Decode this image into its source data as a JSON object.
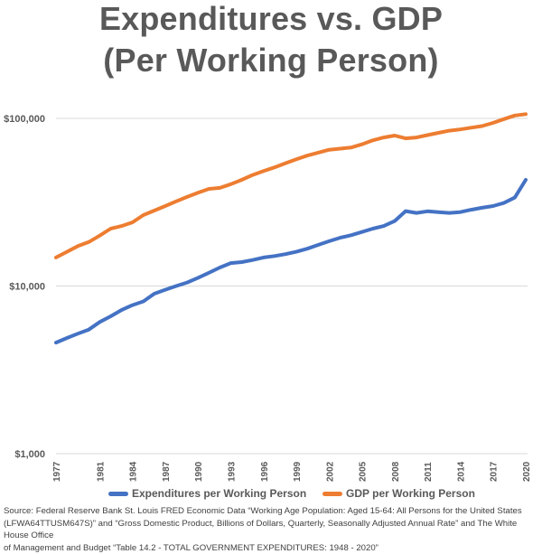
{
  "chart_data": {
    "type": "line",
    "title": "Expenditures vs. GDP",
    "subtitle": "(Per Working Person)",
    "xlabel": "",
    "ylabel": "",
    "yscale": "log",
    "ylim": [
      1000,
      100000
    ],
    "yticks": [
      {
        "value": 100000,
        "label": "$100,000"
      },
      {
        "value": 10000,
        "label": "$10,000"
      },
      {
        "value": 1000,
        "label": "$1,000"
      }
    ],
    "xlim": [
      1977,
      2020
    ],
    "xticks": [
      "1977",
      "1981",
      "1984",
      "1987",
      "1990",
      "1993",
      "1996",
      "1999",
      "2002",
      "2005",
      "2008",
      "2011",
      "2014",
      "2017",
      "2020"
    ],
    "grid": true,
    "legend_position": "bottom",
    "series": [
      {
        "name": "Expenditures per Working Person",
        "color": "#4472C4",
        "points": [
          [
            1977,
            4600
          ],
          [
            1978,
            4900
          ],
          [
            1979,
            5200
          ],
          [
            1980,
            5500
          ],
          [
            1981,
            6100
          ],
          [
            1982,
            6600
          ],
          [
            1983,
            7200
          ],
          [
            1984,
            7700
          ],
          [
            1985,
            8100
          ],
          [
            1986,
            9000
          ],
          [
            1987,
            9500
          ],
          [
            1988,
            10000
          ],
          [
            1989,
            10500
          ],
          [
            1990,
            11200
          ],
          [
            1991,
            12000
          ],
          [
            1992,
            12900
          ],
          [
            1993,
            13700
          ],
          [
            1994,
            13900
          ],
          [
            1995,
            14300
          ],
          [
            1996,
            14800
          ],
          [
            1997,
            15100
          ],
          [
            1998,
            15500
          ],
          [
            1999,
            16000
          ],
          [
            2000,
            16700
          ],
          [
            2001,
            17600
          ],
          [
            2002,
            18500
          ],
          [
            2003,
            19400
          ],
          [
            2004,
            20100
          ],
          [
            2005,
            21000
          ],
          [
            2006,
            22000
          ],
          [
            2007,
            22800
          ],
          [
            2008,
            24400
          ],
          [
            2009,
            28000
          ],
          [
            2010,
            27300
          ],
          [
            2011,
            27900
          ],
          [
            2012,
            27600
          ],
          [
            2013,
            27300
          ],
          [
            2014,
            27600
          ],
          [
            2015,
            28500
          ],
          [
            2016,
            29300
          ],
          [
            2017,
            30000
          ],
          [
            2018,
            31300
          ],
          [
            2019,
            33700
          ],
          [
            2020,
            43000
          ]
        ]
      },
      {
        "name": "GDP per Working Person",
        "color": "#ED7D31",
        "points": [
          [
            1977,
            14800
          ],
          [
            1978,
            16000
          ],
          [
            1979,
            17300
          ],
          [
            1980,
            18300
          ],
          [
            1981,
            20000
          ],
          [
            1982,
            22000
          ],
          [
            1983,
            22800
          ],
          [
            1984,
            24000
          ],
          [
            1985,
            26500
          ],
          [
            1986,
            28200
          ],
          [
            1987,
            30000
          ],
          [
            1988,
            32000
          ],
          [
            1989,
            34000
          ],
          [
            1990,
            36000
          ],
          [
            1991,
            38000
          ],
          [
            1992,
            38500
          ],
          [
            1993,
            40500
          ],
          [
            1994,
            43000
          ],
          [
            1995,
            46000
          ],
          [
            1996,
            48500
          ],
          [
            1997,
            51000
          ],
          [
            1998,
            54000
          ],
          [
            1999,
            57000
          ],
          [
            2000,
            60000
          ],
          [
            2001,
            62500
          ],
          [
            2002,
            65000
          ],
          [
            2003,
            66000
          ],
          [
            2004,
            67000
          ],
          [
            2005,
            70000
          ],
          [
            2006,
            74000
          ],
          [
            2007,
            77000
          ],
          [
            2008,
            79000
          ],
          [
            2009,
            76000
          ],
          [
            2010,
            77000
          ],
          [
            2011,
            79500
          ],
          [
            2012,
            82000
          ],
          [
            2013,
            84500
          ],
          [
            2014,
            86000
          ],
          [
            2015,
            88000
          ],
          [
            2016,
            90000
          ],
          [
            2017,
            94000
          ],
          [
            2018,
            99000
          ],
          [
            2019,
            104000
          ],
          [
            2020,
            106000
          ]
        ]
      }
    ]
  },
  "legend": {
    "items": [
      {
        "label": "Expenditures per Working Person",
        "color": "#4472C4"
      },
      {
        "label": "GDP per Working Person",
        "color": "#ED7D31"
      }
    ]
  },
  "source": {
    "line1": "Source: Federal Reserve Bank St. Louis FRED Economic Data “Working Age Population: Aged 15-64: All Persons for the United States",
    "line2": "(LFWA64TTUSM647S)” and “Gross Domestic Product, Billions of Dollars, Quarterly, Seasonally Adjusted Annual Rate” and The White House Office",
    "line3": "of Management and Budget “Table 14.2 - TOTAL GOVERNMENT EXPENDITURES:  1948 - 2020”"
  },
  "colors": {
    "text": "#595959",
    "gridline": "#D9D9D9"
  }
}
